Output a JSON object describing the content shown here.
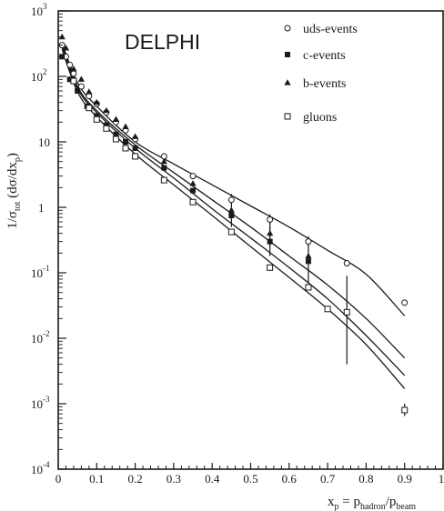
{
  "chart_data": {
    "type": "scatter",
    "title": "DELPHI",
    "xlabel": {
      "base": "x",
      "sub": "p",
      "eq": " = p",
      "sub2": "hadron",
      "slash": "/p",
      "sub3": "beam"
    },
    "ylabel": {
      "p1": "1/σ",
      "sub1": "tot",
      "p2": " (dσ/dx",
      "sub2": "p",
      "p3": ")"
    },
    "x_ticks": [
      "0",
      "0.1",
      "0.2",
      "0.3",
      "0.4",
      "0.5",
      "0.6",
      "0.7",
      "0.8",
      "0.9",
      "1"
    ],
    "y_ticks": [
      {
        "value": 0.0001,
        "base": "10",
        "exp": "-4"
      },
      {
        "value": 0.001,
        "base": "10",
        "exp": "-3"
      },
      {
        "value": 0.01,
        "base": "10",
        "exp": "-2"
      },
      {
        "value": 0.1,
        "base": "10",
        "exp": "-1"
      },
      {
        "value": 1,
        "base": "1",
        "exp": ""
      },
      {
        "value": 10,
        "base": "10",
        "exp": ""
      },
      {
        "value": 100,
        "base": "10",
        "exp": "2"
      },
      {
        "value": 1000,
        "base": "10",
        "exp": "3"
      }
    ],
    "xlim": [
      0,
      1
    ],
    "ylim": [
      0.0001,
      1000
    ],
    "yscale": "log",
    "legend_position": "top-right",
    "series": [
      {
        "name": "uds-events",
        "marker": "open-circle",
        "points": [
          [
            0.01,
            300
          ],
          [
            0.02,
            200
          ],
          [
            0.03,
            150
          ],
          [
            0.04,
            110
          ],
          [
            0.06,
            70
          ],
          [
            0.08,
            50
          ],
          [
            0.1,
            38
          ],
          [
            0.125,
            28
          ],
          [
            0.15,
            20
          ],
          [
            0.175,
            15
          ],
          [
            0.2,
            11
          ],
          [
            0.275,
            6
          ],
          [
            0.35,
            3
          ],
          [
            0.45,
            1.3
          ],
          [
            0.55,
            0.65
          ],
          [
            0.65,
            0.3
          ],
          [
            0.75,
            0.14
          ],
          [
            0.9,
            0.035
          ]
        ],
        "errors": [
          [
            0.45,
            1.1,
            1.6
          ],
          [
            0.55,
            0.55,
            0.78
          ],
          [
            0.65,
            0.25,
            0.36
          ]
        ]
      },
      {
        "name": "c-events",
        "marker": "filled-square",
        "points": [
          [
            0.01,
            200
          ],
          [
            0.03,
            90
          ],
          [
            0.05,
            60
          ],
          [
            0.075,
            35
          ],
          [
            0.1,
            25
          ],
          [
            0.125,
            18
          ],
          [
            0.15,
            13
          ],
          [
            0.175,
            10
          ],
          [
            0.2,
            8
          ],
          [
            0.275,
            4
          ],
          [
            0.35,
            1.8
          ],
          [
            0.45,
            0.75
          ],
          [
            0.55,
            0.3
          ],
          [
            0.65,
            0.15
          ]
        ],
        "errors": [
          [
            0.55,
            0.18,
            0.5
          ],
          [
            0.65,
            0.07,
            0.3
          ]
        ]
      },
      {
        "name": "b-events",
        "marker": "filled-triangle",
        "points": [
          [
            0.01,
            400
          ],
          [
            0.02,
            270
          ],
          [
            0.04,
            130
          ],
          [
            0.06,
            90
          ],
          [
            0.08,
            58
          ],
          [
            0.1,
            40
          ],
          [
            0.125,
            30
          ],
          [
            0.15,
            22
          ],
          [
            0.175,
            17
          ],
          [
            0.2,
            12
          ],
          [
            0.275,
            5
          ],
          [
            0.35,
            2.3
          ],
          [
            0.45,
            0.9
          ],
          [
            0.55,
            0.4
          ],
          [
            0.65,
            0.18
          ]
        ],
        "errors": [
          [
            0.45,
            0.5,
            1.4
          ],
          [
            0.55,
            0.25,
            0.6
          ]
        ]
      },
      {
        "name": "gluons",
        "marker": "open-square",
        "points": [
          [
            0.04,
            85
          ],
          [
            0.08,
            33
          ],
          [
            0.1,
            22
          ],
          [
            0.125,
            16
          ],
          [
            0.15,
            11
          ],
          [
            0.175,
            8
          ],
          [
            0.2,
            6
          ],
          [
            0.275,
            2.6
          ],
          [
            0.35,
            1.2
          ],
          [
            0.45,
            0.42
          ],
          [
            0.55,
            0.12
          ],
          [
            0.65,
            0.06
          ],
          [
            0.7,
            0.028
          ],
          [
            0.75,
            0.025
          ],
          [
            0.9,
            0.0008
          ]
        ],
        "errors": [
          [
            0.75,
            0.004,
            0.09
          ],
          [
            0.9,
            0.00065,
            0.001
          ]
        ]
      }
    ],
    "curves": [
      {
        "name": "",
        "points": [
          [
            0.01,
            320
          ],
          [
            0.05,
            80
          ],
          [
            0.1,
            35
          ],
          [
            0.2,
            10
          ],
          [
            0.3,
            4.6
          ],
          [
            0.4,
            2.2
          ],
          [
            0.5,
            1.05
          ],
          [
            0.6,
            0.5
          ],
          [
            0.7,
            0.22
          ],
          [
            0.8,
            0.095
          ],
          [
            0.9,
            0.022
          ]
        ]
      },
      {
        "name": "",
        "points": [
          [
            0.01,
            300
          ],
          [
            0.05,
            70
          ],
          [
            0.1,
            30
          ],
          [
            0.2,
            9
          ],
          [
            0.3,
            3.4
          ],
          [
            0.4,
            1.3
          ],
          [
            0.5,
            0.5
          ],
          [
            0.6,
            0.18
          ],
          [
            0.7,
            0.065
          ],
          [
            0.8,
            0.02
          ],
          [
            0.9,
            0.005
          ]
        ]
      },
      {
        "name": "",
        "points": [
          [
            0.01,
            280
          ],
          [
            0.05,
            65
          ],
          [
            0.1,
            28
          ],
          [
            0.2,
            8
          ],
          [
            0.3,
            2.8
          ],
          [
            0.4,
            0.95
          ],
          [
            0.5,
            0.34
          ],
          [
            0.6,
            0.12
          ],
          [
            0.7,
            0.04
          ],
          [
            0.8,
            0.011
          ],
          [
            0.9,
            0.0027
          ]
        ]
      },
      {
        "name": "",
        "points": [
          [
            0.01,
            260
          ],
          [
            0.05,
            58
          ],
          [
            0.1,
            24
          ],
          [
            0.2,
            6.5
          ],
          [
            0.3,
            2.2
          ],
          [
            0.4,
            0.75
          ],
          [
            0.5,
            0.25
          ],
          [
            0.6,
            0.085
          ],
          [
            0.7,
            0.028
          ],
          [
            0.8,
            0.008
          ],
          [
            0.9,
            0.0017
          ]
        ]
      }
    ]
  }
}
